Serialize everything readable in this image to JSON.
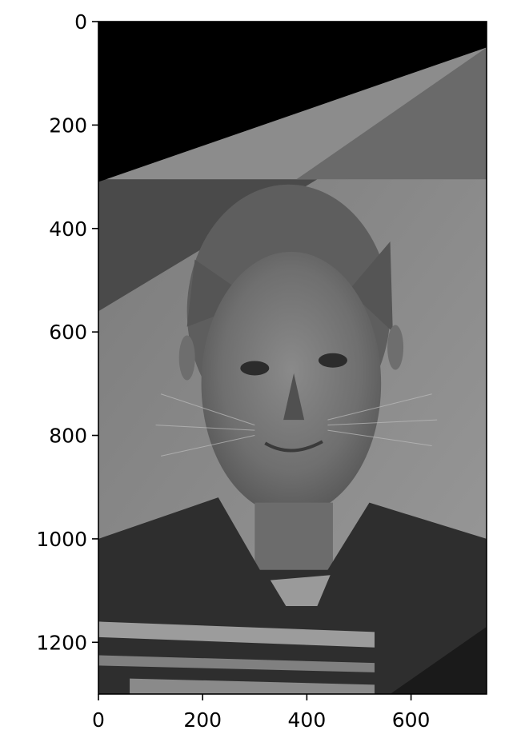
{
  "chart_data": {
    "type": "image",
    "title": "",
    "xlabel": "",
    "ylabel": "",
    "xlim": [
      0,
      745
    ],
    "ylim": [
      1300,
      0
    ],
    "x_ticks": [
      0,
      200,
      400,
      600
    ],
    "y_ticks": [
      0,
      200,
      400,
      600,
      800,
      1000,
      1200
    ],
    "x_tick_labels": [
      "0",
      "200",
      "400",
      "600"
    ],
    "y_tick_labels": [
      "0",
      "200",
      "400",
      "600",
      "800",
      "1000",
      "1200"
    ],
    "grid": false,
    "colormap": "gray",
    "image_description_regions": {
      "black_corner_top": {
        "points": [
          [
            0,
            0
          ],
          [
            745,
            0
          ],
          [
            745,
            50
          ],
          [
            0,
            310
          ]
        ]
      },
      "dark_band_left": {
        "points": [
          [
            0,
            305
          ],
          [
            420,
            305
          ],
          [
            0,
            560
          ]
        ]
      },
      "background_light": "#8c8c8c",
      "wall_color": "#939393",
      "shirt_color": "#2e2e2e",
      "face_color": "#7a7a7a"
    }
  }
}
